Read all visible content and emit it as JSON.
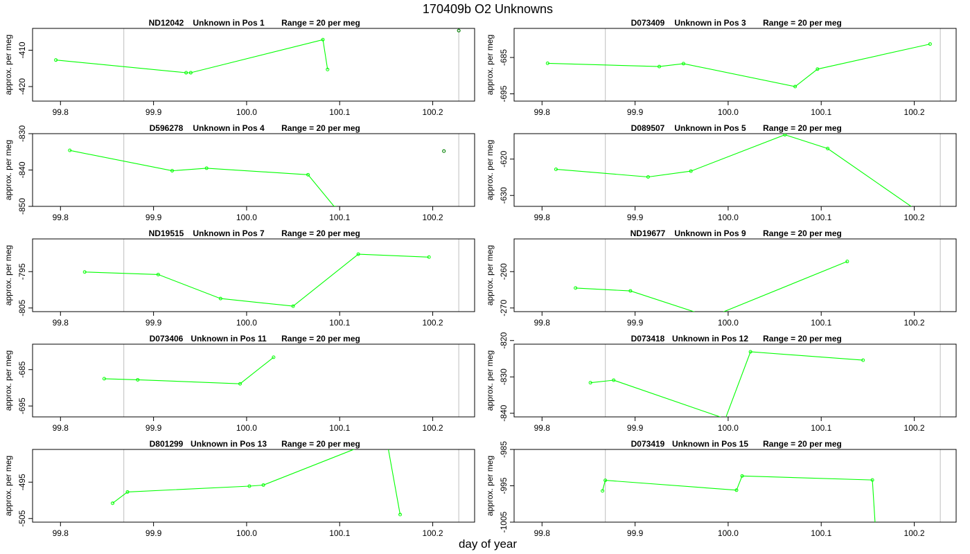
{
  "chart_data": {
    "type": "line",
    "title": "170409b  O2 Unknowns",
    "xlabel": "day of year",
    "ylabel": "approx. per meg",
    "xlim": [
      99.77,
      100.245
    ],
    "xticks": [
      99.8,
      99.9,
      100.0,
      100.1,
      100.2
    ],
    "xtick_labels": [
      "99.8",
      "99.9",
      "100.0",
      "100.1",
      "100.2"
    ],
    "vlines": [
      99.868,
      100.228
    ],
    "line_color": "#00ff00",
    "panels": [
      {
        "id": "ND12042",
        "position": "Unknown in Pos 1",
        "range": "Range = 20 per meg",
        "ylim": [
          -424,
          -404
        ],
        "yticks": [
          -410,
          -420
        ],
        "ytick_labels": [
          "-410",
          "-420"
        ],
        "x": [
          99.795,
          99.935,
          99.94,
          100.082,
          100.087
        ],
        "y": [
          -412.7,
          -416.2,
          -416.2,
          -407.1,
          -415.3
        ],
        "outliers": [
          {
            "x": 100.228,
            "y": -404.6
          }
        ]
      },
      {
        "id": "D073409",
        "position": "Unknown in Pos 3",
        "range": "Range = 20 per meg",
        "ylim": [
          -697,
          -677
        ],
        "yticks": [
          -685,
          -695
        ],
        "ytick_labels": [
          "-685",
          "-695"
        ],
        "x": [
          99.806,
          99.926,
          99.952,
          100.072,
          100.096,
          100.217
        ],
        "y": [
          -686.6,
          -687.5,
          -686.7,
          -693.0,
          -688.2,
          -681.3
        ],
        "outliers": []
      },
      {
        "id": "D596278",
        "position": "Unknown in Pos 4",
        "range": "Range = 20 per meg",
        "ylim": [
          -850,
          -830
        ],
        "yticks": [
          -830,
          -840,
          -850
        ],
        "ytick_labels": [
          "-830",
          "-840",
          "-850"
        ],
        "x": [
          99.81,
          99.92,
          99.957,
          100.066,
          100.095
        ],
        "y": [
          -834.6,
          -840.2,
          -839.5,
          -841.3,
          -850.3
        ],
        "outliers": [
          {
            "x": 100.212,
            "y": -834.8
          }
        ]
      },
      {
        "id": "D089507",
        "position": "Unknown in Pos 5",
        "range": "Range = 20 per meg",
        "ylim": [
          -633,
          -613
        ],
        "yticks": [
          -620,
          -630
        ],
        "ytick_labels": [
          "-620",
          "-630"
        ],
        "x": [
          99.815,
          99.914,
          99.96,
          100.061,
          100.107,
          100.2
        ],
        "y": [
          -622.8,
          -624.9,
          -623.3,
          -613.3,
          -617.1,
          -633.6
        ],
        "outliers": []
      },
      {
        "id": "ND19515",
        "position": "Unknown in Pos 7",
        "range": "Range = 20 per meg",
        "ylim": [
          -806,
          -786
        ],
        "yticks": [
          -795,
          -805
        ],
        "ytick_labels": [
          "-795",
          "-805"
        ],
        "x": [
          99.826,
          99.905,
          99.972,
          100.05,
          100.12,
          100.196
        ],
        "y": [
          -795.1,
          -795.8,
          -802.4,
          -804.5,
          -790.2,
          -791.0
        ],
        "outliers": []
      },
      {
        "id": "ND19677",
        "position": "Unknown in Pos 9",
        "range": "Range = 20 per meg",
        "ylim": [
          -271,
          -251
        ],
        "yticks": [
          -260,
          -270
        ],
        "ytick_labels": [
          "-260",
          "-270"
        ],
        "x": [
          99.836,
          99.895,
          99.981,
          100.128
        ],
        "y": [
          -264.5,
          -265.3,
          -272.5,
          -257.2
        ],
        "outliers": []
      },
      {
        "id": "D073406",
        "position": "Unknown in Pos 11",
        "range": "Range = 20 per meg",
        "ylim": [
          -698,
          -678
        ],
        "yticks": [
          -685,
          -695
        ],
        "ytick_labels": [
          "-685",
          "-695"
        ],
        "x": [
          99.847,
          99.883,
          99.993,
          100.029
        ],
        "y": [
          -687.5,
          -687.8,
          -688.9,
          -681.6
        ],
        "outliers": []
      },
      {
        "id": "D073418",
        "position": "Unknown in Pos 12",
        "range": "Range = 20 per meg",
        "ylim": [
          -841,
          -821
        ],
        "yticks": [
          -820,
          -830,
          -840
        ],
        "ytick_labels": [
          "-820",
          "-830",
          "-840"
        ],
        "x": [
          99.852,
          99.877,
          99.997,
          100.024,
          100.145
        ],
        "y": [
          -831.6,
          -830.9,
          -841.5,
          -823.1,
          -825.4
        ],
        "outliers": []
      },
      {
        "id": "D801299",
        "position": "Unknown in Pos 13",
        "range": "Range = 20 per meg",
        "ylim": [
          -506,
          -486
        ],
        "yticks": [
          -495,
          -505
        ],
        "ytick_labels": [
          "-495",
          "-505"
        ],
        "x": [
          99.856,
          99.872,
          100.003,
          100.018,
          100.12,
          100.152,
          100.165
        ],
        "y": [
          -500.8,
          -497.7,
          -496.1,
          -495.8,
          -485.5,
          -485.5,
          -503.9
        ],
        "outliers": []
      },
      {
        "id": "D073419",
        "position": "Unknown in Pos 15",
        "range": "Range = 20 per meg",
        "ylim": [
          -1005,
          -985
        ],
        "yticks": [
          -985,
          -995,
          -1005
        ],
        "ytick_labels": [
          "-985",
          "-995",
          "-1005"
        ],
        "x": [
          99.865,
          99.868,
          100.009,
          100.015,
          100.155,
          100.158
        ],
        "y": [
          -996.4,
          -993.5,
          -996.2,
          -992.3,
          -993.4,
          -1005.5
        ],
        "outliers": []
      }
    ]
  }
}
